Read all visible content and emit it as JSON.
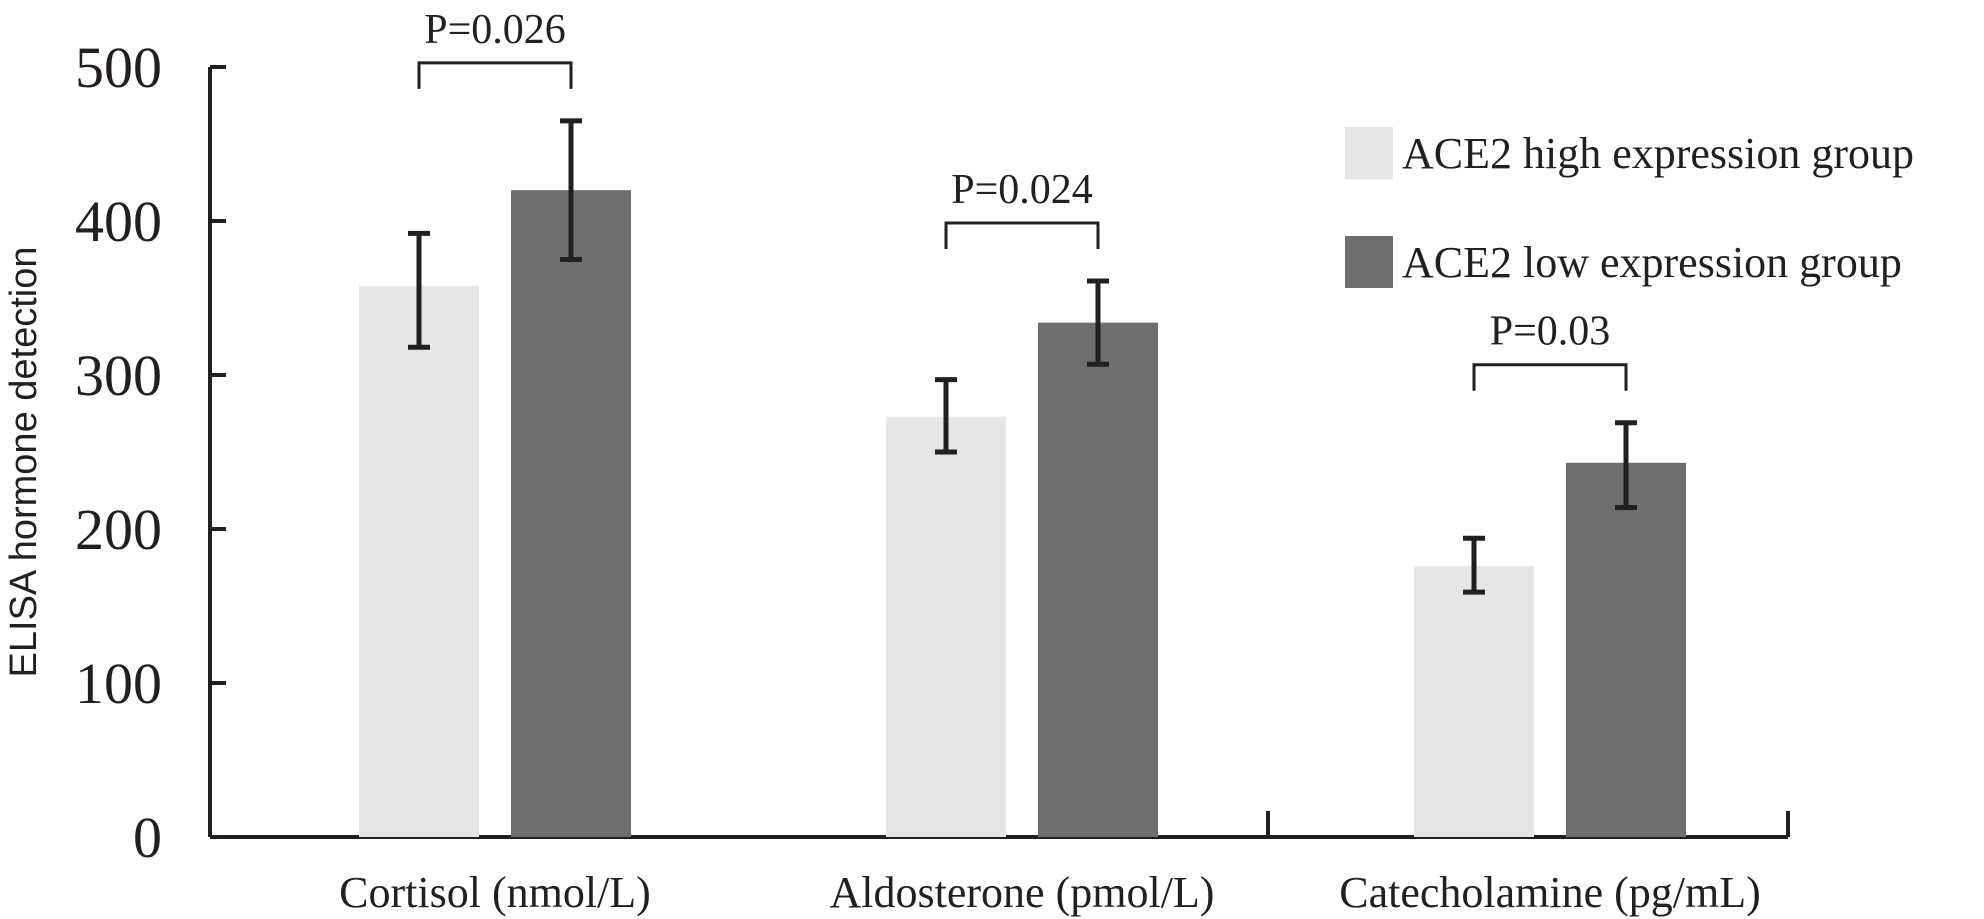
{
  "chart_data": {
    "type": "bar",
    "ylabel": "ELISA hormone detection",
    "xlabel": "",
    "ylim": [
      0,
      500
    ],
    "yticks": [
      0,
      100,
      200,
      300,
      400,
      500
    ],
    "categories": [
      "Cortisol (nmol/L)",
      "Aldosterone (pmol/L)",
      "Catecholamine (pg/mL)"
    ],
    "series": [
      {
        "name": "ACE2 high expression group",
        "color": "#e6e6e8",
        "values": [
          358,
          273,
          176
        ],
        "err_low": [
          318,
          250,
          159
        ],
        "err_high": [
          392,
          297,
          194
        ]
      },
      {
        "name": "ACE2 low expression group",
        "color": "#6e6e6e",
        "values": [
          420,
          334,
          243
        ],
        "err_low": [
          375,
          307,
          214
        ],
        "err_high": [
          465,
          361,
          269
        ]
      }
    ],
    "annotations": [
      "P=0.026",
      "P=0.024",
      "P=0.03"
    ],
    "legend_position": "top-right",
    "grid": false
  }
}
